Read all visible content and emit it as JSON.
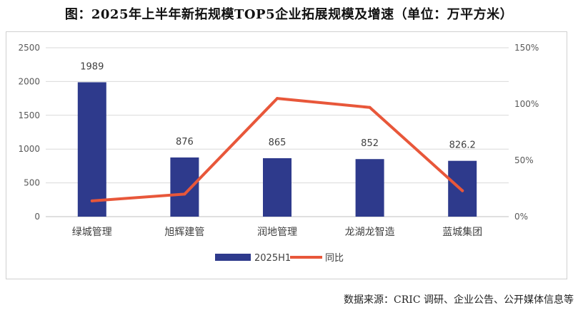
{
  "title": "图：2025年上半年新拓规模TOP5企业拓展规模及增速（单位：万平方米）",
  "source": "数据来源：CRIC 调研、企业公告、公开媒体信息等",
  "colors": {
    "bar": "#2E3A8C",
    "line": "#E8573A",
    "grid": "#d9d9d9"
  },
  "chart_data": {
    "type": "bar",
    "categories": [
      "绿城管理",
      "旭辉建管",
      "润地管理",
      "龙湖龙智造",
      "蓝城集团"
    ],
    "series": [
      {
        "name": "2025H1",
        "type": "bar",
        "axis": "left",
        "values": [
          1989,
          876,
          865,
          852,
          826.2
        ]
      },
      {
        "name": "同比",
        "type": "line",
        "axis": "right",
        "values": [
          14,
          20,
          105,
          97,
          23
        ]
      }
    ],
    "data_labels": [
      "1989",
      "876",
      "865",
      "852",
      "826.2"
    ],
    "ylim_left": [
      0,
      2500
    ],
    "yticks_left": [
      "0",
      "500",
      "1000",
      "1500",
      "2000",
      "2500"
    ],
    "ylim_right": [
      0,
      150
    ],
    "yticks_right": [
      "0%",
      "50%",
      "100%",
      "150%"
    ],
    "grid": true,
    "legend": "bottom"
  }
}
